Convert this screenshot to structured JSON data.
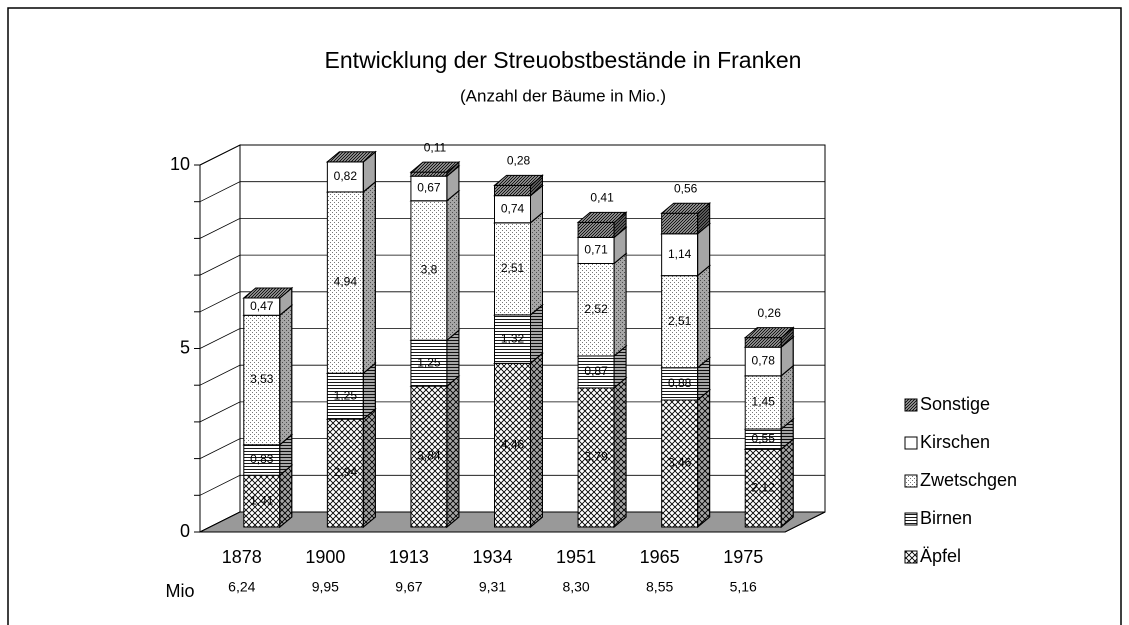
{
  "chart_data": {
    "type": "bar3d_stacked",
    "title": "Entwicklung der Streuobstbestände in Franken",
    "subtitle": "(Anzahl der Bäume in Mio.)",
    "categories": [
      "1878",
      "1900",
      "1913",
      "1934",
      "1951",
      "1965",
      "1975"
    ],
    "series": [
      {
        "name": "Äpfel",
        "color": "#ffffff",
        "pattern": "crosshatch",
        "values": [
          1.41,
          2.94,
          3.84,
          4.46,
          3.79,
          3.46,
          2.12
        ],
        "value_labels": [
          "1,41",
          "2,94",
          "3,84",
          "4,46",
          "3,79",
          "3,46",
          "2,12"
        ]
      },
      {
        "name": "Birnen",
        "color": "#ffffff",
        "pattern": "hlines",
        "values": [
          0.83,
          1.25,
          1.25,
          1.32,
          0.87,
          0.88,
          0.55
        ],
        "value_labels": [
          "0,83",
          "1,25",
          "1,25",
          "1,32",
          "0,87",
          "0,88",
          "0,55"
        ]
      },
      {
        "name": "Zwetschgen",
        "color": "#ffffff",
        "pattern": "dots",
        "values": [
          3.53,
          4.94,
          3.8,
          2.51,
          2.52,
          2.51,
          1.45
        ],
        "value_labels": [
          "3,53",
          "4,94",
          "3,8",
          "2,51",
          "2,52",
          "2,51",
          "1,45"
        ]
      },
      {
        "name": "Kirschen",
        "color": "#ffffff",
        "pattern": "solid",
        "values": [
          0.47,
          0.82,
          0.67,
          0.74,
          0.71,
          1.14,
          0.78
        ],
        "value_labels": [
          "0,47",
          "0,82",
          "0,67",
          "0,74",
          "0,71",
          "1,14",
          "0,78"
        ]
      },
      {
        "name": "Sonstige",
        "color": "#ffffff",
        "pattern": "diag",
        "values": [
          0,
          0,
          0.11,
          0.28,
          0.41,
          0.56,
          0.26
        ],
        "value_labels": [
          null,
          null,
          "0,11",
          "0,28",
          "0,41",
          "0,56",
          "0,26"
        ]
      }
    ],
    "totals_title": "Mio",
    "totals": [
      6.24,
      9.95,
      9.67,
      9.31,
      8.3,
      8.55,
      5.16
    ],
    "total_labels": [
      "6,24",
      "9,95",
      "9,67",
      "9,31",
      "8,30",
      "8,55",
      "5,16"
    ],
    "ylim": [
      0,
      10
    ],
    "yticks": [
      0,
      5,
      10
    ],
    "minor_yticks": [
      1,
      2,
      3,
      4,
      6,
      7,
      8,
      9
    ],
    "grid": true,
    "legend": "right"
  }
}
